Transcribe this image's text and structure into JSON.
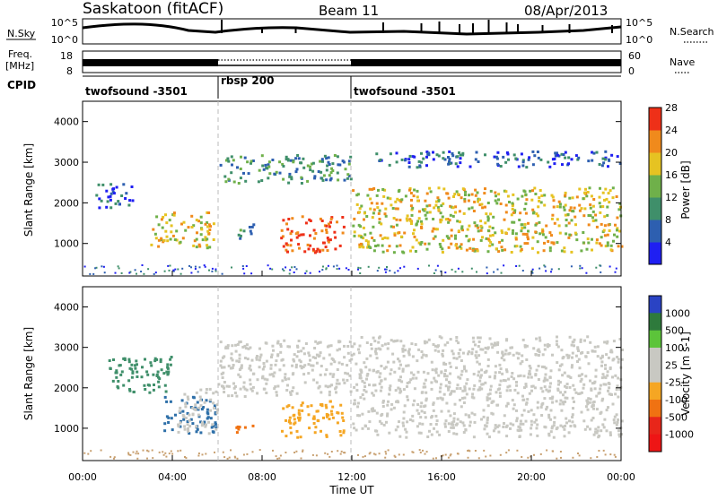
{
  "header": {
    "station": "Saskatoon (fitACF)",
    "beam": "Beam 11",
    "date": "08/Apr/2013"
  },
  "noise_panel": {
    "left_label": "N.Sky",
    "left_ticks": [
      "10^5",
      "10^0"
    ],
    "right_ticks": [
      "10^5",
      "10^0"
    ],
    "right_label": "N.Search"
  },
  "freq_panel": {
    "left_label_line1": "Freq.",
    "left_label_line2": "[MHz]",
    "left_ticks": [
      "18",
      "8"
    ],
    "right_ticks": [
      "60",
      "0"
    ],
    "right_label": "Nave"
  },
  "cpid": {
    "label": "CPID",
    "segments": [
      {
        "name": "twofsound -3501",
        "start": 0,
        "end": 6
      },
      {
        "name": "rbsp 200",
        "start": 6,
        "end": 12
      },
      {
        "name": "twofsound -3501",
        "start": 12,
        "end": 24
      }
    ]
  },
  "time_axis": {
    "label": "Time UT",
    "ticks": [
      "00:00",
      "04:00",
      "08:00",
      "12:00",
      "16:00",
      "20:00",
      "00:00"
    ]
  },
  "chart_data": [
    {
      "type": "heatmap",
      "name": "power",
      "ylabel": "Slant Range [km]",
      "xlim": [
        0,
        24
      ],
      "ylim": [
        200,
        4500
      ],
      "yticks": [
        "1000",
        "2000",
        "3000",
        "4000"
      ],
      "colorbar": {
        "label": "Power [dB]",
        "ticks": [
          "4",
          "8",
          "12",
          "16",
          "20",
          "24",
          "28"
        ],
        "colors": [
          "#1f1ff2",
          "#2d5fb0",
          "#3f8f6a",
          "#6fb04a",
          "#e6c322",
          "#f08a1c",
          "#ee3018"
        ]
      },
      "regions": [
        {
          "t": [
            0.5,
            2.3
          ],
          "r": [
            1900,
            2500
          ],
          "level": 2
        },
        {
          "t": [
            3.0,
            5.8
          ],
          "r": [
            900,
            1800
          ],
          "level": 5
        },
        {
          "t": [
            6.1,
            12.0
          ],
          "r": [
            2500,
            3200
          ],
          "level": 3
        },
        {
          "t": [
            6.8,
            7.6
          ],
          "r": [
            1100,
            1500
          ],
          "level": 3
        },
        {
          "t": [
            8.8,
            11.6
          ],
          "r": [
            800,
            1700
          ],
          "level": 7
        },
        {
          "t": [
            12.0,
            24.0
          ],
          "r": [
            800,
            2400
          ],
          "level": 5
        },
        {
          "t": [
            13.0,
            24.0
          ],
          "r": [
            2900,
            3300
          ],
          "level": 2
        }
      ]
    },
    {
      "type": "heatmap",
      "name": "velocity",
      "ylabel": "Slant Range [km]",
      "xlim": [
        0,
        24
      ],
      "ylim": [
        200,
        4500
      ],
      "yticks": [
        "1000",
        "2000",
        "3000",
        "4000"
      ],
      "colorbar": {
        "label": "Velocity [m s-1]",
        "ticks": [
          "1000",
          "500",
          "100",
          "25",
          "-25",
          "-100",
          "-500",
          "-1000"
        ],
        "colors": [
          "#2a43c4",
          "#2e7a3c",
          "#5cc43a",
          "#c8c8c2",
          "#c8c8c2",
          "#f5a623",
          "#f07212",
          "#e8261a",
          "#ee1515"
        ]
      },
      "regions": [
        {
          "t": [
            1.0,
            4.0
          ],
          "r": [
            1900,
            2800
          ],
          "color": "#3f8f6a"
        },
        {
          "t": [
            3.6,
            5.9
          ],
          "r": [
            900,
            1800
          ],
          "color": "#2d6fa8"
        },
        {
          "t": [
            4.2,
            6.0
          ],
          "r": [
            900,
            2000
          ],
          "color": "#c8c8c2"
        },
        {
          "t": [
            6.0,
            12.0
          ],
          "r": [
            1800,
            3200
          ],
          "color": "#c8c8c2"
        },
        {
          "t": [
            8.8,
            11.6
          ],
          "r": [
            800,
            1700
          ],
          "color": "#f5a623"
        },
        {
          "t": [
            6.8,
            7.6
          ],
          "r": [
            800,
            1100
          ],
          "color": "#f07212"
        },
        {
          "t": [
            12.0,
            24.0
          ],
          "r": [
            800,
            3300
          ],
          "color": "#c8c8c2"
        }
      ]
    }
  ]
}
